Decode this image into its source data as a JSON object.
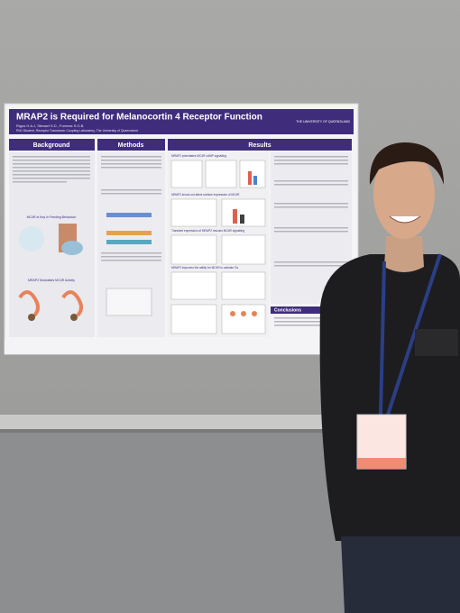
{
  "poster": {
    "title": "MRAP2 is Required for Melanocortin 4 Receptor Function",
    "authors": "Rigos H.A.J, Stewart S.D., Furness S.G.B.",
    "affiliation": "PhD Student, Receptor Transducer Coupling Laboratory, The University of Queensland",
    "university": "THE UNIVERSITY OF QUEENSLAND",
    "sections": [
      "Background",
      "Methods",
      "Results",
      "Conclusions"
    ],
    "background_headings": [
      "MC4R Is Key In Feeding Behaviour",
      "MRAP2 Modulates MC4R Activity"
    ],
    "results_headings": [
      "MRAP2 potentiates MC4R cAMP signalling",
      "MRAP2 knock-out alters surface expression of MC4R",
      "Transient expression of MRAP2 rescues MC4R signalling",
      "MRAP2 improves the ability for MC4R to activate Gs"
    ]
  }
}
